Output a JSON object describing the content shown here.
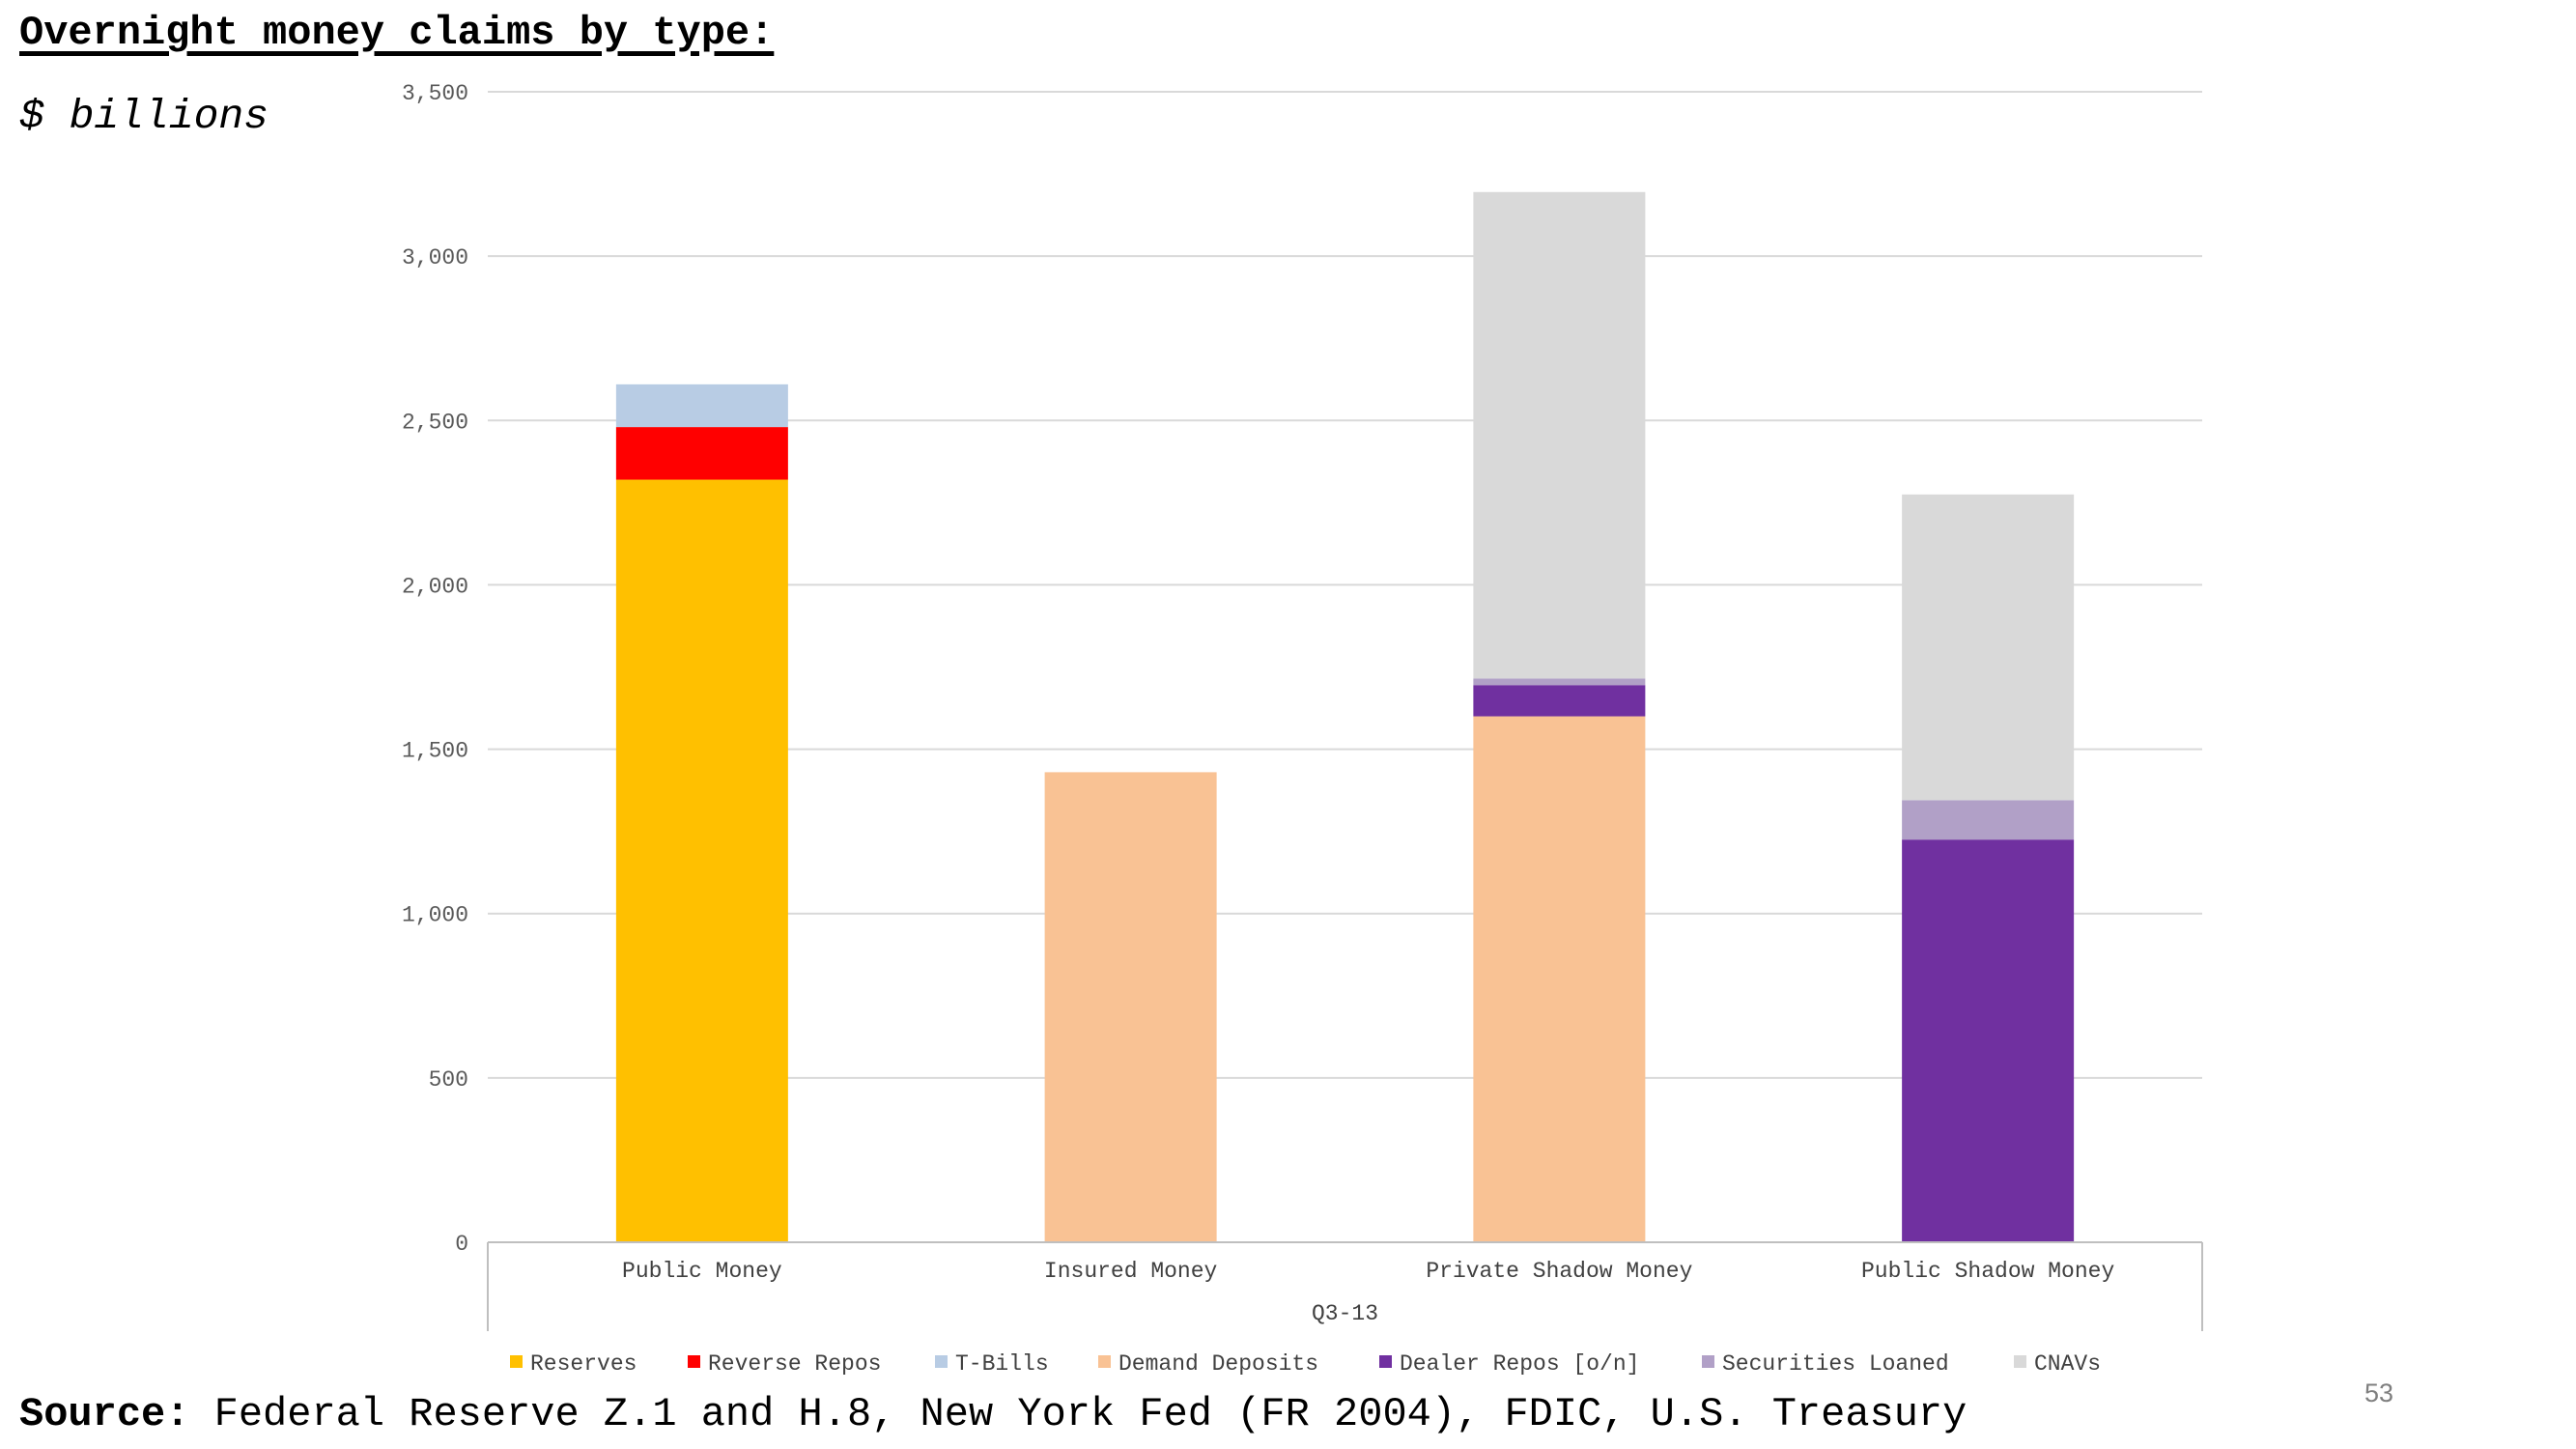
{
  "header": {
    "title": "Overnight money claims by type:",
    "subtitle": "$ billions"
  },
  "footer": {
    "source_label": "Source:",
    "source_text": " Federal Reserve Z.1 and H.8, New York Fed (FR 2004), FDIC, U.S. Treasury",
    "page_number": "53"
  },
  "chart_data": {
    "type": "bar",
    "stacked": true,
    "categories": [
      "Public Money",
      "Insured Money",
      "Private Shadow Money",
      "Public Shadow Money"
    ],
    "group_label": "Q3-13",
    "y_ticks": [
      "0",
      "500",
      "1,000",
      "1,500",
      "2,000",
      "2,500",
      "3,000",
      "3,500"
    ],
    "ylim": [
      0,
      3500
    ],
    "grid": true,
    "legend_position": "bottom",
    "series": [
      {
        "name": "Reserves",
        "color": "#FFC000",
        "values": [
          2320,
          0,
          0,
          0
        ]
      },
      {
        "name": "Reverse Repos",
        "color": "#FF0000",
        "values": [
          160,
          0,
          0,
          0
        ]
      },
      {
        "name": "T-Bills",
        "color": "#B8CCE4",
        "values": [
          130,
          0,
          0,
          0
        ]
      },
      {
        "name": "Demand Deposits",
        "color": "#F9C294",
        "values": [
          0,
          1430,
          1600,
          0
        ]
      },
      {
        "name": "Dealer Repos [o/n]",
        "color": "#7030A0",
        "values": [
          0,
          0,
          95,
          1225
        ]
      },
      {
        "name": "Securities Loaned",
        "color": "#B1A0C7",
        "values": [
          0,
          0,
          20,
          120
        ]
      },
      {
        "name": "CNAVs",
        "color": "#D9D9D9",
        "values": [
          0,
          0,
          1480,
          930
        ]
      }
    ]
  }
}
